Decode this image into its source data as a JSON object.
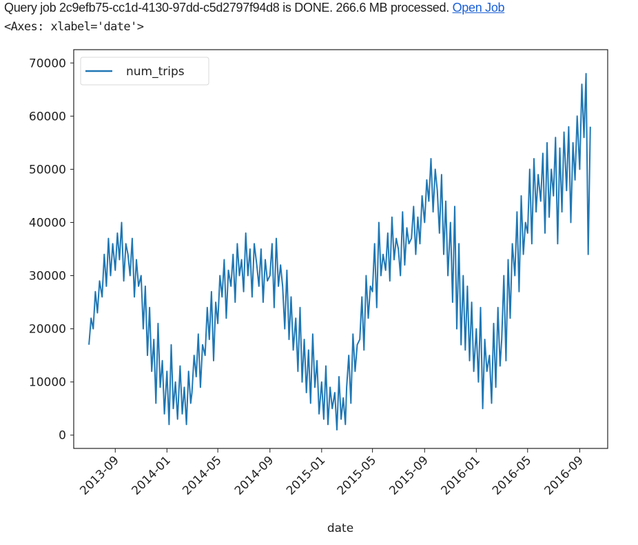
{
  "status": {
    "text": "Query job 2c9efb75-cc1d-4130-97dd-c5d2797f94d8 is DONE. 266.6 MB processed.",
    "link": "Open Job"
  },
  "repr": "<Axes: xlabel='date'>",
  "colors": {
    "line": "#1f77b4",
    "link": "#1a5fd6"
  },
  "chart_data": {
    "type": "line",
    "title": "",
    "xlabel": "date",
    "ylabel": "",
    "ylim": [
      -2500,
      72500
    ],
    "xlim": [
      "2013-05-26",
      "2016-11-06"
    ],
    "grid": false,
    "legend": "top-left",
    "yticks": [
      0,
      10000,
      20000,
      30000,
      40000,
      50000,
      60000,
      70000
    ],
    "ytick_labels": [
      "0",
      "10000",
      "20000",
      "30000",
      "40000",
      "50000",
      "60000",
      "70000"
    ],
    "xticks": [
      "2013-09-01",
      "2014-01-01",
      "2014-05-01",
      "2014-09-01",
      "2015-01-01",
      "2015-05-01",
      "2015-09-01",
      "2016-01-01",
      "2016-05-01",
      "2016-09-01"
    ],
    "xtick_labels": [
      "2013-09",
      "2014-01",
      "2014-05",
      "2014-09",
      "2015-01",
      "2015-05",
      "2015-09",
      "2016-01",
      "2016-05",
      "2016-09"
    ],
    "series": [
      {
        "name": "num_trips",
        "days": [
          "01",
          "06",
          "11",
          "16",
          "21",
          "26"
        ],
        "monthly": [
          {
            "month": "2013-07",
            "values": [
              17000,
              22000,
              20000,
              27000,
              23000,
              29000
            ]
          },
          {
            "month": "2013-08",
            "values": [
              26000,
              34000,
              28000,
              37000,
              30000,
              36000
            ]
          },
          {
            "month": "2013-09",
            "values": [
              31000,
              38000,
              33000,
              40000,
              29000,
              36000
            ]
          },
          {
            "month": "2013-10",
            "values": [
              34000,
              30000,
              37000,
              26000,
              33000,
              28000
            ]
          },
          {
            "month": "2013-11",
            "values": [
              30000,
              20000,
              28000,
              15000,
              24000,
              12000
            ]
          },
          {
            "month": "2013-12",
            "values": [
              18000,
              6000,
              21000,
              9000,
              14000,
              4000
            ]
          },
          {
            "month": "2014-01",
            "values": [
              12000,
              2000,
              17000,
              5000,
              10000,
              3000
            ]
          },
          {
            "month": "2014-02",
            "values": [
              13000,
              4000,
              9000,
              2000,
              12000,
              6000
            ]
          },
          {
            "month": "2014-03",
            "values": [
              8000,
              15000,
              11000,
              19000,
              9000,
              17000
            ]
          },
          {
            "month": "2014-04",
            "values": [
              15000,
              24000,
              18000,
              27000,
              14000,
              25000
            ]
          },
          {
            "month": "2014-05",
            "values": [
              21000,
              30000,
              26000,
              33000,
              22000,
              31000
            ]
          },
          {
            "month": "2014-06",
            "values": [
              28000,
              34000,
              25000,
              36000,
              30000,
              33000
            ]
          },
          {
            "month": "2014-07",
            "values": [
              27000,
              38000,
              30000,
              35000,
              26000,
              36000
            ]
          },
          {
            "month": "2014-08",
            "values": [
              32000,
              28000,
              35000,
              25000,
              33000,
              29000
            ]
          },
          {
            "month": "2014-09",
            "values": [
              30000,
              36000,
              24000,
              37000,
              28000,
              32000
            ]
          },
          {
            "month": "2014-10",
            "values": [
              28000,
              20000,
              31000,
              18000,
              26000,
              16000
            ]
          },
          {
            "month": "2014-11",
            "values": [
              22000,
              12000,
              24000,
              10000,
              18000,
              8000
            ]
          },
          {
            "month": "2014-12",
            "values": [
              16000,
              6000,
              19000,
              9000,
              14000,
              4000
            ]
          },
          {
            "month": "2015-01",
            "values": [
              10000,
              3000,
              13000,
              2000,
              9000,
              5000
            ]
          },
          {
            "month": "2015-02",
            "values": [
              8000,
              1000,
              11000,
              3000,
              7000,
              2000
            ]
          },
          {
            "month": "2015-03",
            "values": [
              9000,
              15000,
              6000,
              19000,
              12000,
              17000
            ]
          },
          {
            "month": "2015-04",
            "values": [
              18000,
              26000,
              16000,
              30000,
              22000,
              28000
            ]
          },
          {
            "month": "2015-05",
            "values": [
              27000,
              36000,
              24000,
              40000,
              30000,
              34000
            ]
          },
          {
            "month": "2015-06",
            "values": [
              31000,
              38000,
              29000,
              41000,
              33000,
              37000
            ]
          },
          {
            "month": "2015-07",
            "values": [
              35000,
              30000,
              42000,
              32000,
              39000,
              36000
            ]
          },
          {
            "month": "2015-08",
            "values": [
              37000,
              43000,
              34000,
              41000,
              36000,
              45000
            ]
          },
          {
            "month": "2015-09",
            "values": [
              40000,
              48000,
              44000,
              52000,
              42000,
              50000
            ]
          },
          {
            "month": "2015-10",
            "values": [
              46000,
              38000,
              49000,
              34000,
              44000,
              30000
            ]
          },
          {
            "month": "2015-11",
            "values": [
              40000,
              25000,
              43000,
              20000,
              36000,
              17000
            ]
          },
          {
            "month": "2015-12",
            "values": [
              30000,
              16000,
              28000,
              14000,
              25000,
              12000
            ]
          },
          {
            "month": "2016-01",
            "values": [
              20000,
              10000,
              24000,
              5000,
              18000,
              12000
            ]
          },
          {
            "month": "2016-02",
            "values": [
              15000,
              6000,
              21000,
              9000,
              24000,
              13000
            ]
          },
          {
            "month": "2016-03",
            "values": [
              18000,
              30000,
              14000,
              33000,
              22000,
              36000
            ]
          },
          {
            "month": "2016-04",
            "values": [
              30000,
              42000,
              27000,
              45000,
              34000,
              40000
            ]
          },
          {
            "month": "2016-05",
            "values": [
              38000,
              50000,
              36000,
              52000,
              42000,
              49000
            ]
          },
          {
            "month": "2016-06",
            "values": [
              44000,
              53000,
              38000,
              55000,
              41000,
              50000
            ]
          },
          {
            "month": "2016-07",
            "values": [
              45000,
              56000,
              36000,
              54000,
              42000,
              57000
            ]
          },
          {
            "month": "2016-08",
            "values": [
              46000,
              58000,
              40000,
              55000,
              48000,
              60000
            ]
          },
          {
            "month": "2016-09",
            "values": [
              50000,
              66000,
              56000,
              68000,
              34000,
              58000
            ]
          }
        ]
      }
    ]
  }
}
